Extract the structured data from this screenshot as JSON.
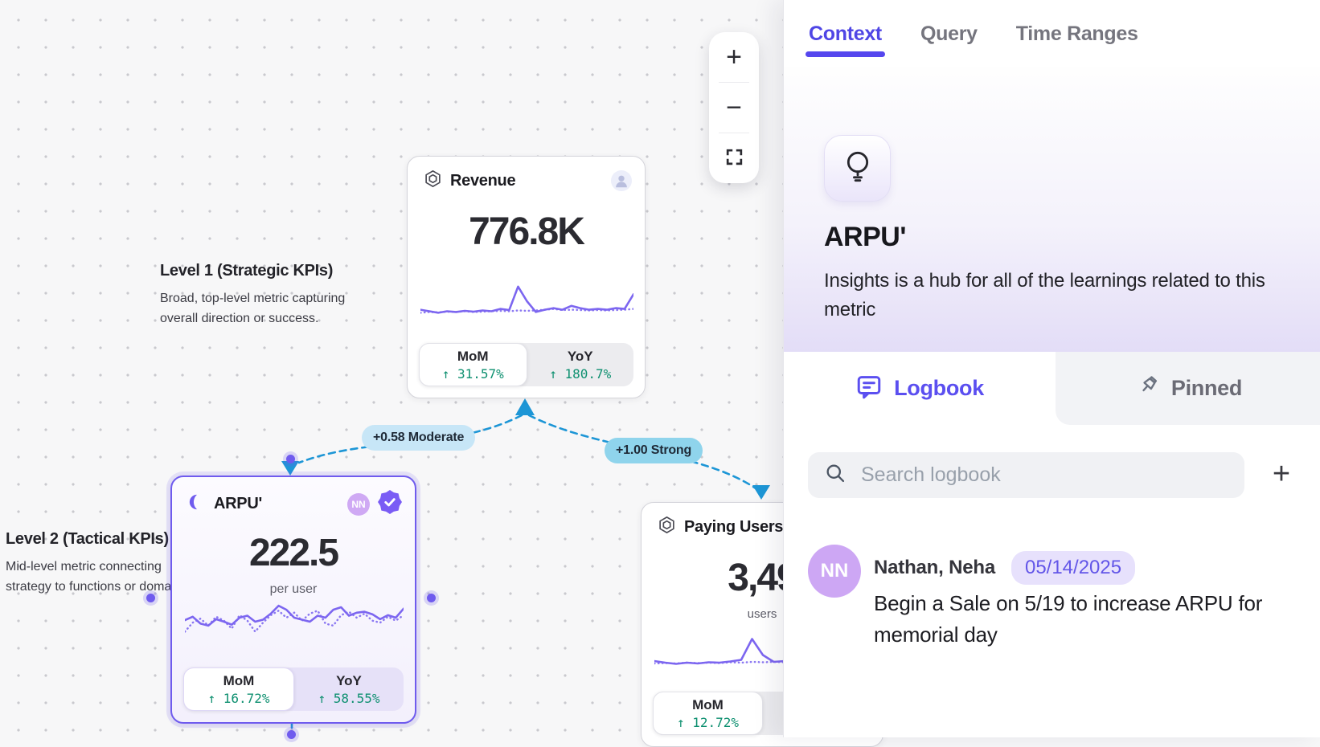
{
  "colors": {
    "accent": "#5b4ff0",
    "selected_border": "#6f5bee",
    "sparkline": "#7c66f0",
    "positive_green": "#0e9070",
    "edge_blue": "#1d96d6",
    "moderate_pill_bg": "#c7e6f7",
    "strong_pill_bg": "#8fd4ec"
  },
  "canvas": {
    "zoom_toolbar": {
      "zoom_in": "+",
      "zoom_out": "−"
    },
    "annotations": {
      "level1": {
        "title": "Level 1 (Strategic KPIs)",
        "body": "Broad, top-level metric capturing overall direction or success."
      },
      "level2": {
        "title": "Level 2 (Tactical KPIs)",
        "body": "Mid-level metric connecting strategy to functions or doma"
      }
    },
    "edges": [
      {
        "label": "+0.58 Moderate",
        "strength": "moderate"
      },
      {
        "label": "+1.00 Strong",
        "strength": "strong"
      }
    ],
    "cards": {
      "revenue": {
        "title": "Revenue",
        "value": "776.8K",
        "stats": [
          {
            "label": "MoM",
            "value": "↑ 31.57%"
          },
          {
            "label": "YoY",
            "value": "↑ 180.7%"
          }
        ],
        "sparkline": {
          "solid": [
            0.28,
            0.24,
            0.2,
            0.24,
            0.22,
            0.25,
            0.23,
            0.26,
            0.24,
            0.3,
            0.27,
            0.88,
            0.5,
            0.22,
            0.28,
            0.32,
            0.28,
            0.38,
            0.32,
            0.28,
            0.3,
            0.28,
            0.32,
            0.3,
            0.68
          ],
          "dotted": [
            0.2,
            0.22,
            0.21,
            0.23,
            0.22,
            0.24,
            0.22,
            0.23,
            0.24,
            0.25,
            0.24,
            0.26,
            0.25,
            0.26,
            0.28,
            0.3,
            0.27,
            0.28,
            0.27,
            0.26,
            0.27,
            0.26,
            0.27,
            0.28,
            0.3
          ]
        }
      },
      "arpu": {
        "title": "ARPU'",
        "value": "222.5",
        "unit": "per user",
        "badge_initials": "NN",
        "stats": [
          {
            "label": "MoM",
            "value": "↑ 16.72%"
          },
          {
            "label": "YoY",
            "value": "↑ 58.55%"
          }
        ],
        "sparkline": {
          "solid": [
            0.45,
            0.52,
            0.38,
            0.34,
            0.47,
            0.42,
            0.36,
            0.5,
            0.54,
            0.42,
            0.46,
            0.58,
            0.74,
            0.66,
            0.5,
            0.46,
            0.42,
            0.54,
            0.5,
            0.66,
            0.71,
            0.54,
            0.6,
            0.62,
            0.57,
            0.47,
            0.55,
            0.5,
            0.68
          ],
          "dotted": [
            0.22,
            0.4,
            0.48,
            0.34,
            0.52,
            0.44,
            0.28,
            0.55,
            0.44,
            0.22,
            0.4,
            0.55,
            0.64,
            0.5,
            0.6,
            0.44,
            0.58,
            0.64,
            0.38,
            0.34,
            0.55,
            0.62,
            0.5,
            0.58,
            0.44,
            0.4,
            0.52,
            0.44,
            0.55
          ]
        }
      },
      "paying_users": {
        "title": "Paying Users'",
        "value": "3,49",
        "unit": "users",
        "stats": [
          {
            "label": "MoM",
            "value": "↑ 12.72%"
          }
        ],
        "sparkline": {
          "solid": [
            0.3,
            0.26,
            0.23,
            0.26,
            0.24,
            0.27,
            0.26,
            0.29,
            0.33,
            0.85,
            0.45,
            0.28,
            0.3,
            0.29,
            0.31,
            0.3,
            0.32,
            0.31,
            0.33,
            0.32,
            0.34
          ],
          "dotted": [
            0.24,
            0.25,
            0.24,
            0.26,
            0.25,
            0.26,
            0.25,
            0.27,
            0.26,
            0.28,
            0.27,
            0.28,
            0.27,
            0.28,
            0.27,
            0.28,
            0.28,
            0.29,
            0.28,
            0.29,
            0.29
          ]
        }
      }
    }
  },
  "panel": {
    "tabs": [
      {
        "label": "Context",
        "active": true
      },
      {
        "label": "Query",
        "active": false
      },
      {
        "label": "Time Ranges",
        "active": false
      }
    ],
    "hero": {
      "title": "ARPU'",
      "description": "Insights is a hub for all of the learnings related to this metric"
    },
    "subtabs": [
      {
        "label": "Logbook",
        "active": true
      },
      {
        "label": "Pinned",
        "active": false
      }
    ],
    "search": {
      "placeholder": "Search logbook",
      "add_label": "+"
    },
    "entries": [
      {
        "initials": "NN",
        "author": "Nathan, Neha",
        "date": "05/14/2025",
        "text": "Begin a Sale on 5/19 to increase ARPU for memorial day"
      }
    ]
  }
}
